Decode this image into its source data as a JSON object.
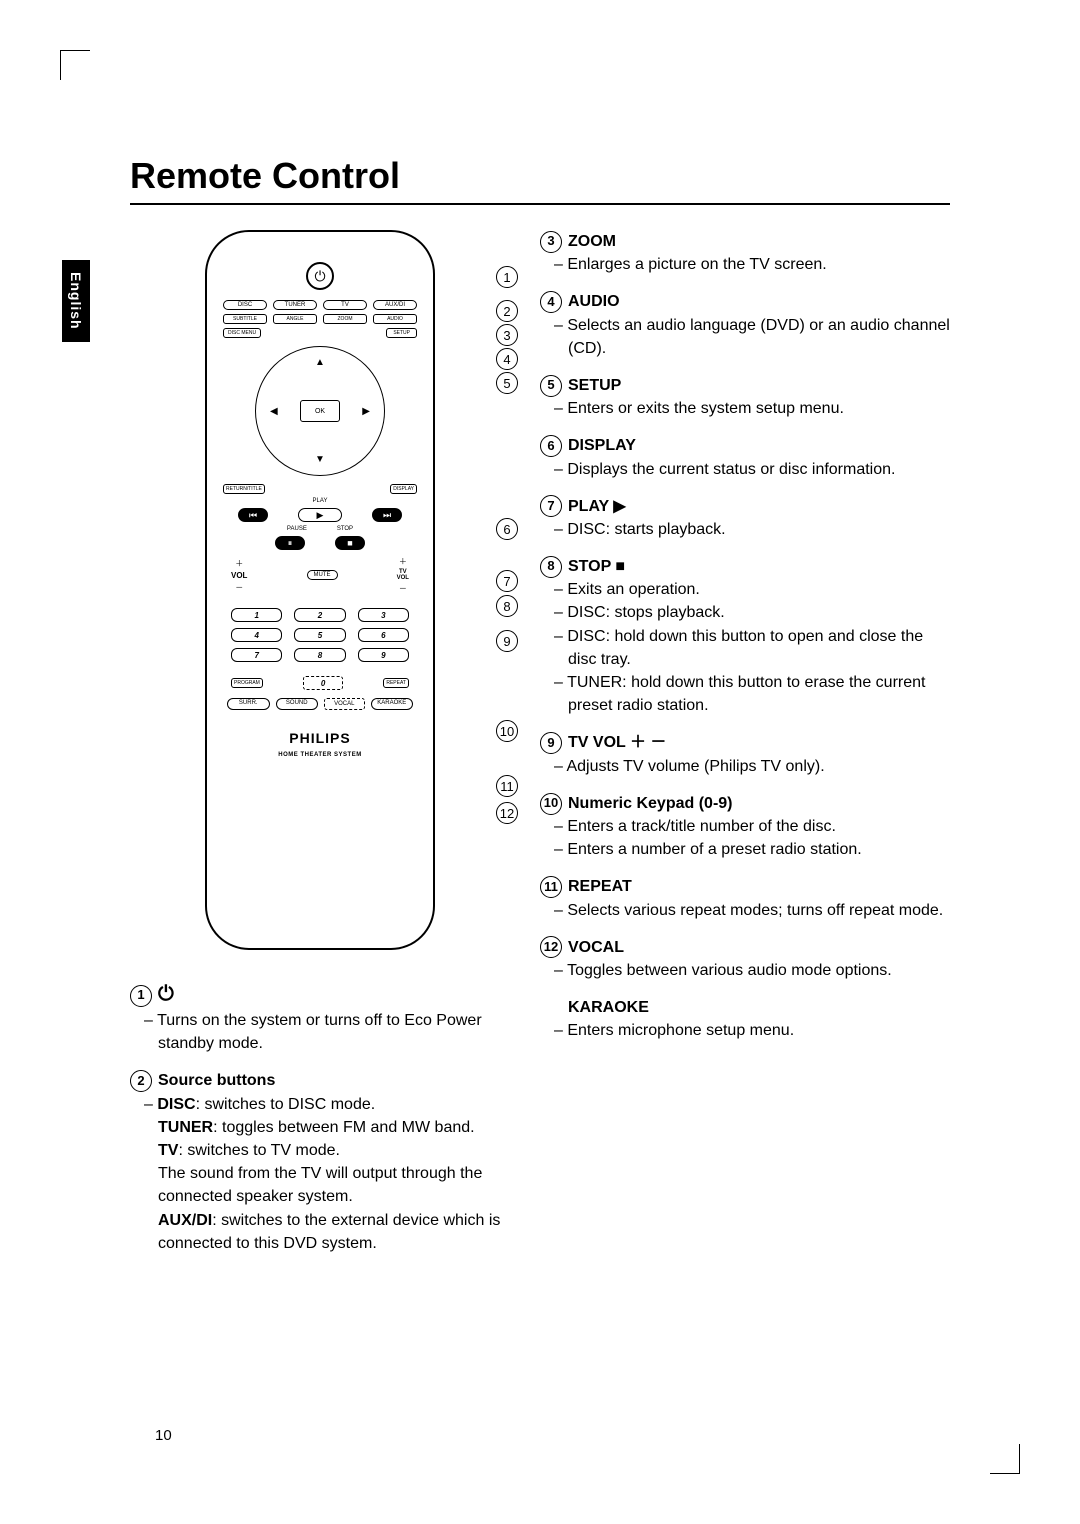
{
  "page_title": "Remote Control",
  "language_tab": "English",
  "page_number": "10",
  "remote": {
    "brand": "PHILIPS",
    "subtitle": "HOME THEATER SYSTEM",
    "source_row": [
      "DISC",
      "TUNER",
      "TV",
      "AUX/DI"
    ],
    "row2": [
      "SUBTITLE",
      "ANGLE",
      "ZOOM",
      "AUDIO"
    ],
    "row3_left": "DISC MENU",
    "row3_right": "SETUP",
    "ok": "OK",
    "return": "RETURN/TITLE",
    "display": "DISPLAY",
    "play_lbl": "PLAY",
    "pause_lbl": "PAUSE",
    "stop_lbl": "STOP",
    "vol": "VOL",
    "mute": "MUTE",
    "tvvol": "TV\nVOL",
    "nums": [
      "1",
      "2",
      "3",
      "4",
      "5",
      "6",
      "7",
      "8",
      "9",
      "0"
    ],
    "program": "PROGRAM",
    "repeat": "REPEAT",
    "bottom_row": [
      "SURR.",
      "SOUND",
      "VOCAL",
      "KARAOKE"
    ]
  },
  "callouts": {
    "c1": "1",
    "c2": "2",
    "c3": "3",
    "c4": "4",
    "c5": "5",
    "c6": "6",
    "c7": "7",
    "c8": "8",
    "c9": "9",
    "c10": "10",
    "c11": "11",
    "c12": "12"
  },
  "left_items": [
    {
      "num": "1",
      "title_icon": "⏻",
      "lines": [
        "Turns on the system or turns off to Eco Power standby mode."
      ]
    },
    {
      "num": "2",
      "title": "Source buttons",
      "lines": []
    }
  ],
  "left_source_block": {
    "disc_b": "DISC",
    "disc_t": ": switches to DISC mode.",
    "tuner_b": "TUNER",
    "tuner_t": ": toggles between FM and MW band.",
    "tv_b": "TV",
    "tv_t": ": switches to TV mode.",
    "tv_extra": "The sound from the TV will output through the connected speaker system.",
    "aux_b": "AUX/DI",
    "aux_t": ": switches to the external device which is connected to this DVD system."
  },
  "right_items": [
    {
      "num": "3",
      "title": "ZOOM",
      "lines": [
        "Enlarges a picture on the TV screen."
      ]
    },
    {
      "num": "4",
      "title": "AUDIO",
      "lines": [
        "Selects an audio language (DVD) or an audio channel (CD)."
      ]
    },
    {
      "num": "5",
      "title": "SETUP",
      "lines": [
        "Enters or exits the system setup menu."
      ]
    },
    {
      "num": "6",
      "title": "DISPLAY",
      "lines": [
        "Displays the current status or disc information."
      ]
    },
    {
      "num": "7",
      "title": "PLAY  ▶",
      "lines": [
        "DISC: starts playback."
      ]
    },
    {
      "num": "8",
      "title": "STOP  ■",
      "lines": [
        "Exits an operation.",
        "DISC: stops playback.",
        "DISC: hold down this button to open and close the disc tray.",
        "TUNER: hold down this button to erase the current preset radio station."
      ]
    },
    {
      "num": "9",
      "title": "TV VOL  ＋ －",
      "lines": [
        "Adjusts TV volume (Philips TV only)."
      ]
    },
    {
      "num": "10",
      "title": "Numeric Keypad (0-9)",
      "lines": [
        "Enters a track/title number of the disc.",
        "Enters a number of a preset radio station."
      ]
    },
    {
      "num": "11",
      "title": "REPEAT",
      "lines": [
        "Selects various repeat modes; turns off repeat mode."
      ]
    },
    {
      "num": "12",
      "title": "VOCAL",
      "lines": [
        "Toggles between various audio mode options."
      ]
    }
  ],
  "karaoke": {
    "title": "KARAOKE",
    "line": "Enters microphone setup menu."
  }
}
